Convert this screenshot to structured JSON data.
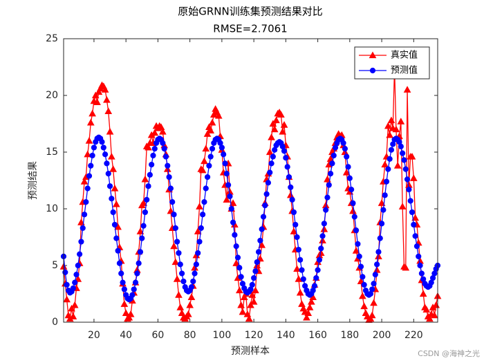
{
  "chart_data": {
    "type": "line",
    "title": "原始GRNN训练集预测结果对比",
    "subtitle": "RMSE=2.7061",
    "xlabel": "预测样本",
    "ylabel": "预测结果",
    "watermark": "CSDN @海神之光",
    "xlim": [
      1,
      235
    ],
    "ylim": [
      0,
      25
    ],
    "xticks": [
      20,
      40,
      60,
      80,
      100,
      120,
      140,
      160,
      180,
      200,
      220
    ],
    "yticks": [
      0,
      5,
      10,
      15,
      20,
      25
    ],
    "legend_position": "northeast",
    "x": [
      1,
      2,
      3,
      4,
      5,
      6,
      7,
      8,
      9,
      10,
      11,
      12,
      13,
      14,
      15,
      16,
      17,
      18,
      19,
      20,
      21,
      22,
      23,
      24,
      25,
      26,
      27,
      28,
      29,
      30,
      31,
      32,
      33,
      34,
      35,
      36,
      37,
      38,
      39,
      40,
      41,
      42,
      43,
      44,
      45,
      46,
      47,
      48,
      49,
      50,
      51,
      52,
      53,
      54,
      55,
      56,
      57,
      58,
      59,
      60,
      61,
      62,
      63,
      64,
      65,
      66,
      67,
      68,
      69,
      70,
      71,
      72,
      73,
      74,
      75,
      76,
      77,
      78,
      79,
      80,
      81,
      82,
      83,
      84,
      85,
      86,
      87,
      88,
      89,
      90,
      91,
      92,
      93,
      94,
      95,
      96,
      97,
      98,
      99,
      100,
      101,
      102,
      103,
      104,
      105,
      106,
      107,
      108,
      109,
      110,
      111,
      112,
      113,
      114,
      115,
      116,
      117,
      118,
      119,
      120,
      121,
      122,
      123,
      124,
      125,
      126,
      127,
      128,
      129,
      130,
      131,
      132,
      133,
      134,
      135,
      136,
      137,
      138,
      139,
      140,
      141,
      142,
      143,
      144,
      145,
      146,
      147,
      148,
      149,
      150,
      151,
      152,
      153,
      154,
      155,
      156,
      157,
      158,
      159,
      160,
      161,
      162,
      163,
      164,
      165,
      166,
      167,
      168,
      169,
      170,
      171,
      172,
      173,
      174,
      175,
      176,
      177,
      178,
      179,
      180,
      181,
      182,
      183,
      184,
      185,
      186,
      187,
      188,
      189,
      190,
      191,
      192,
      193,
      194,
      195,
      196,
      197,
      198,
      199,
      200,
      201,
      202,
      203,
      204,
      205,
      206,
      207,
      208,
      209,
      210,
      211,
      212,
      213,
      214,
      215,
      216,
      217,
      218,
      219,
      220,
      221,
      222,
      223,
      224,
      225,
      226,
      227,
      228,
      229,
      230,
      231,
      232,
      233,
      234,
      235
    ],
    "series": [
      {
        "name": "真实值",
        "color": "#ff0000",
        "marker": "triangle",
        "values": [
          4.9,
          3.4,
          2.0,
          0.6,
          0.3,
          1.2,
          0.5,
          1.5,
          3.0,
          3.8,
          5.2,
          8.8,
          10.6,
          12.4,
          12.8,
          14.8,
          16.0,
          17.6,
          18.4,
          19.5,
          20.0,
          19.4,
          20.3,
          20.6,
          20.9,
          20.8,
          20.5,
          19.6,
          18.6,
          16.8,
          14.6,
          13.5,
          11.8,
          10.4,
          8.4,
          6.6,
          5.4,
          3.4,
          1.6,
          0.8,
          0.3,
          0.4,
          0.7,
          1.9,
          2.6,
          3.5,
          4.6,
          6.2,
          8.0,
          10.3,
          10.5,
          12.6,
          15.5,
          15.4,
          15.8,
          16.5,
          15.8,
          16.7,
          17.3,
          17.1,
          17.3,
          17.2,
          16.8,
          15.6,
          14.8,
          13.5,
          11.7,
          9.8,
          8.3,
          6.7,
          5.3,
          3.8,
          2.4,
          1.3,
          0.8,
          0.4,
          0.3,
          0.5,
          0.7,
          1.5,
          2.2,
          3.2,
          4.8,
          5.9,
          8.0,
          10.2,
          13.5,
          13.4,
          14.2,
          15.3,
          16.6,
          17.2,
          16.9,
          17.6,
          18.3,
          18.8,
          18.5,
          18.2,
          16.4,
          15.2,
          13.2,
          12.1,
          10.8,
          14.0,
          11.5,
          10.0,
          10.5,
          8.6,
          5.2,
          3.9,
          2.8,
          1.5,
          0.9,
          2.2,
          2.5,
          0.7,
          0.3,
          1.5,
          2.4,
          1.8,
          2.8,
          5.0,
          4.5,
          5.6,
          6.8,
          8.4,
          10.5,
          12.6,
          13.1,
          15.0,
          16.3,
          17.5,
          17.0,
          17.8,
          18.4,
          18.5,
          18.3,
          16.8,
          17.4,
          15.6,
          14.6,
          12.8,
          11.2,
          9.8,
          8.0,
          6.4,
          4.7,
          3.8,
          2.6,
          1.6,
          1.2,
          0.9,
          0.4,
          0.8,
          1.3,
          1.8,
          2.2,
          3.3,
          3.9,
          5.3,
          5.9,
          6.1,
          7.2,
          8.2,
          10.3,
          12.6,
          13.9,
          14.4,
          15.0,
          15.3,
          15.8,
          16.3,
          16.6,
          16.4,
          16.5,
          15.6,
          15.0,
          13.2,
          11.8,
          11.5,
          10.5,
          9.8,
          8.1,
          6.3,
          5.6,
          4.8,
          3.6,
          2.3,
          1.4,
          0.8,
          0.5,
          0.2,
          0.3,
          0.6,
          1.7,
          2.9,
          4.6,
          5.8,
          8.8,
          10.5,
          12.4,
          13.9,
          14.6,
          17.3,
          16.5,
          17.8,
          17.1,
          22.4,
          17.0,
          13.8,
          16.4,
          17.7,
          10.2,
          4.9,
          4.8,
          20.5,
          12.1,
          14.6,
          14.6,
          12.7,
          9.2,
          8.6,
          7.0,
          5.4,
          3.7,
          2.5,
          1.3,
          1.1,
          0.5,
          0.3,
          0.7,
          1.3,
          0.6,
          1.5,
          2.3
        ]
      },
      {
        "name": "预测值",
        "color": "#0000ff",
        "marker": "circle",
        "values": [
          5.8,
          4.4,
          3.3,
          2.8,
          2.6,
          2.7,
          3.0,
          3.5,
          4.2,
          5.0,
          6.0,
          7.1,
          8.3,
          9.5,
          10.6,
          11.8,
          12.9,
          13.8,
          14.7,
          15.4,
          15.9,
          16.2,
          16.3,
          16.2,
          15.9,
          15.4,
          14.8,
          14.0,
          13.1,
          12.0,
          10.9,
          9.7,
          8.6,
          7.4,
          6.3,
          5.2,
          4.3,
          3.5,
          2.9,
          2.4,
          2.1,
          2.0,
          2.1,
          2.4,
          2.9,
          3.5,
          4.3,
          5.2,
          6.2,
          7.4,
          8.5,
          9.7,
          10.8,
          12.0,
          13.0,
          13.9,
          14.7,
          15.3,
          15.8,
          16.1,
          16.2,
          16.1,
          15.8,
          15.3,
          14.6,
          13.8,
          12.8,
          11.8,
          10.6,
          9.5,
          8.3,
          7.1,
          6.1,
          5.1,
          4.3,
          3.6,
          3.1,
          2.8,
          2.7,
          2.8,
          3.1,
          3.6,
          4.3,
          5.1,
          6.1,
          7.1,
          8.3,
          9.5,
          10.6,
          11.8,
          12.8,
          13.8,
          14.6,
          15.3,
          15.8,
          16.1,
          16.2,
          16.1,
          15.8,
          15.4,
          14.8,
          14.0,
          13.1,
          12.1,
          11.1,
          10.0,
          8.8,
          7.7,
          6.7,
          5.7,
          4.8,
          4.0,
          3.4,
          3.0,
          2.7,
          2.6,
          2.7,
          2.9,
          3.3,
          3.9,
          4.5,
          5.3,
          6.2,
          7.2,
          8.2,
          9.3,
          10.3,
          11.3,
          12.3,
          13.2,
          14.0,
          14.6,
          15.2,
          15.6,
          15.8,
          15.9,
          15.8,
          15.5,
          15.1,
          14.5,
          13.7,
          12.8,
          11.9,
          10.8,
          9.7,
          8.6,
          7.5,
          6.4,
          5.5,
          4.6,
          3.8,
          3.2,
          2.8,
          2.5,
          2.4,
          2.5,
          2.8,
          3.2,
          3.9,
          4.6,
          5.5,
          6.5,
          7.6,
          8.7,
          9.9,
          11.0,
          12.1,
          13.1,
          14.0,
          14.7,
          15.4,
          15.8,
          16.1,
          16.2,
          16.1,
          15.8,
          15.3,
          14.6,
          13.7,
          12.7,
          11.7,
          10.5,
          9.3,
          8.1,
          6.9,
          5.8,
          4.9,
          4.0,
          3.3,
          2.8,
          2.5,
          2.4,
          2.5,
          2.9,
          3.4,
          4.2,
          5.1,
          6.2,
          7.4,
          8.7,
          9.9,
          11.2,
          12.4,
          13.5,
          14.4,
          15.2,
          15.7,
          16.1,
          16.2,
          16.1,
          15.9,
          15.5,
          14.9,
          14.3,
          13.5,
          12.6,
          11.7,
          10.7,
          9.7,
          8.6,
          7.6,
          6.7,
          5.8,
          5.0,
          4.3,
          3.8,
          3.4,
          3.2,
          3.1,
          3.2,
          3.5,
          3.9,
          4.3,
          4.7,
          5.0
        ]
      }
    ]
  }
}
